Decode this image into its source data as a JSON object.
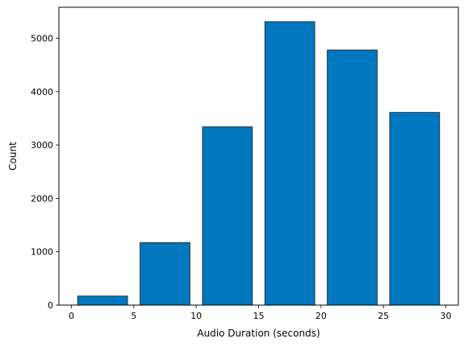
{
  "chart_data": {
    "type": "bar",
    "title": "",
    "xlabel": "Audio Duration (seconds)",
    "ylabel": "Count",
    "bar_color": "#0077be",
    "edge_color": "#1a1a1a",
    "xlim": [
      -1,
      31
    ],
    "ylim": [
      0,
      5580
    ],
    "xticks": [
      0,
      5,
      10,
      15,
      20,
      25,
      30
    ],
    "yticks": [
      0,
      1000,
      2000,
      3000,
      4000,
      5000
    ],
    "grid": false,
    "bars": [
      {
        "x0": 0.5,
        "x1": 4.5,
        "value": 170
      },
      {
        "x0": 5.5,
        "x1": 9.5,
        "value": 1170
      },
      {
        "x0": 10.5,
        "x1": 14.5,
        "value": 3340
      },
      {
        "x0": 15.5,
        "x1": 19.5,
        "value": 5310
      },
      {
        "x0": 20.5,
        "x1": 24.5,
        "value": 4780
      },
      {
        "x0": 25.5,
        "x1": 29.5,
        "value": 3610
      }
    ]
  }
}
